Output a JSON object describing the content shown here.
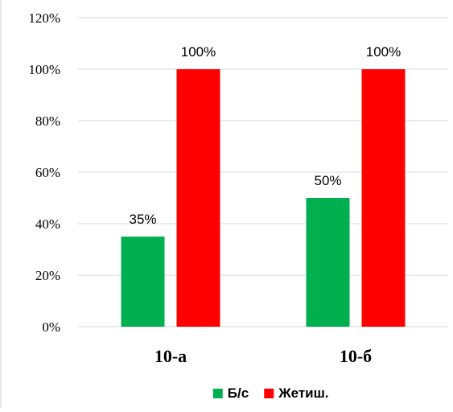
{
  "chart_data": {
    "type": "bar",
    "categories": [
      "10-а",
      "10-б"
    ],
    "series": [
      {
        "name": "Б/с",
        "values": [
          35,
          50
        ],
        "labels": [
          "35%",
          "50%"
        ],
        "color": "#00b050"
      },
      {
        "name": "Жетиш.",
        "values": [
          100,
          100
        ],
        "labels": [
          "100%",
          "100%"
        ],
        "color": "#ff0000"
      }
    ],
    "ylim": [
      0,
      120
    ],
    "yticks": [
      "0%",
      "20%",
      "40%",
      "60%",
      "80%",
      "100%",
      "120%"
    ],
    "grid": true,
    "legend_position": "bottom",
    "title": "",
    "xlabel": "",
    "ylabel": ""
  }
}
